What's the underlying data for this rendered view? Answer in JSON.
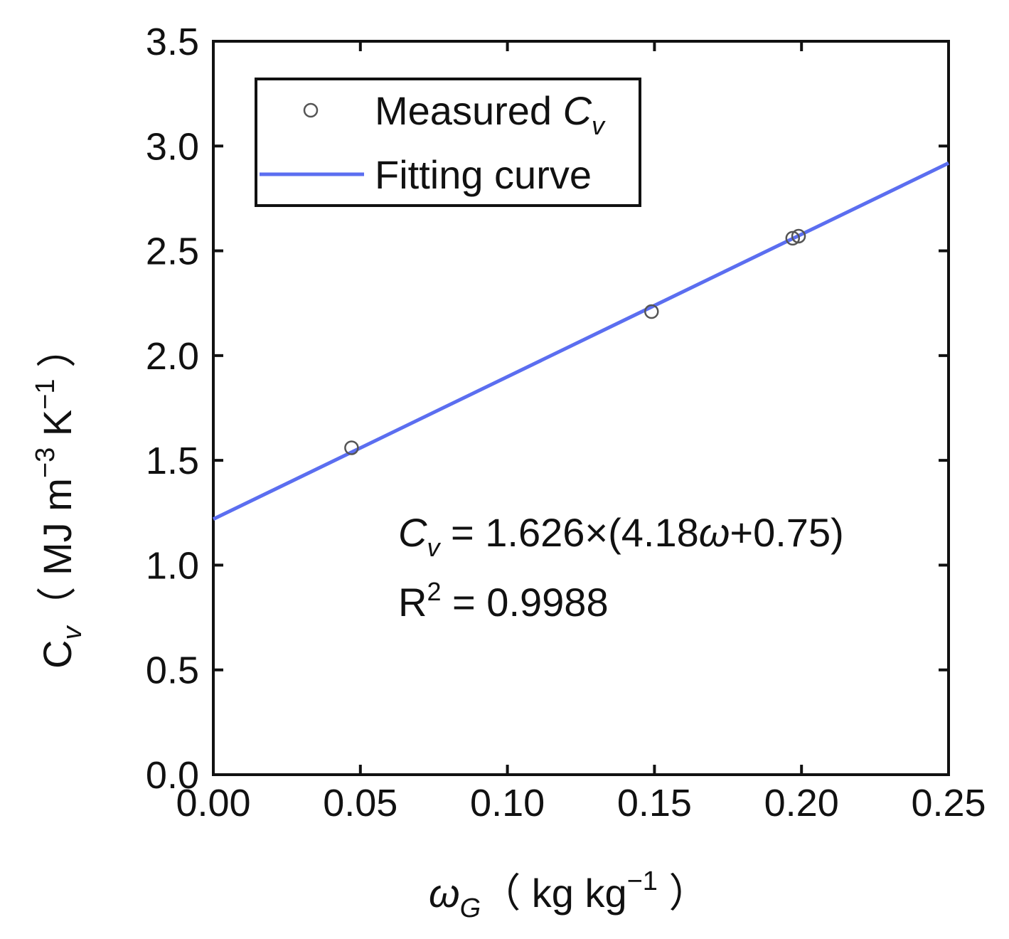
{
  "chart_data": {
    "type": "scatter",
    "title": "",
    "xlabel": {
      "symbol": "ω",
      "subscript": "G",
      "unit_open": "（ kg kg",
      "unit_sup": "−1",
      "unit_close": " ）"
    },
    "ylabel": {
      "symbol": "C",
      "subscript": "v",
      "unit_open": "（ MJ m",
      "unit_sup1": "−3",
      "unit_mid": " K",
      "unit_sup2": "−1",
      "unit_close": " ）"
    },
    "xlim": [
      0.0,
      0.25
    ],
    "ylim": [
      0.0,
      3.5
    ],
    "xticks": [
      0.0,
      0.05,
      0.1,
      0.15,
      0.2,
      0.25
    ],
    "yticks": [
      0.0,
      0.5,
      1.0,
      1.5,
      2.0,
      2.5,
      3.0,
      3.5
    ],
    "xtick_labels": [
      "0.00",
      "0.05",
      "0.10",
      "0.15",
      "0.20",
      "0.25"
    ],
    "ytick_labels": [
      "0.0",
      "0.5",
      "1.0",
      "1.5",
      "2.0",
      "2.5",
      "3.0",
      "3.5"
    ],
    "series": [
      {
        "name": "Measured Cv",
        "kind": "scatter",
        "marker": "open-circle",
        "color": "#555555",
        "x": [
          0.047,
          0.149,
          0.197,
          0.199
        ],
        "y": [
          1.56,
          2.21,
          2.56,
          2.57
        ]
      },
      {
        "name": "Fitting curve",
        "kind": "line",
        "color": "#5b6ef0",
        "x": [
          0.0,
          0.25
        ],
        "y": [
          1.2195,
          2.9185
        ]
      }
    ],
    "legend": {
      "position": "top-left",
      "entries": [
        {
          "label_main": "Measured ",
          "label_symbol": "C",
          "label_sub": "v"
        },
        {
          "label_main": "Fitting curve"
        }
      ]
    },
    "annotations": {
      "equation_symbol": "C",
      "equation_sub": "v",
      "equation_part1": " = 1.626×(4.18",
      "equation_omega": "ω",
      "equation_part2": "+0.75)",
      "r2_label": "R",
      "r2_sup": "2",
      "r2_value": " = 0.9988"
    }
  }
}
